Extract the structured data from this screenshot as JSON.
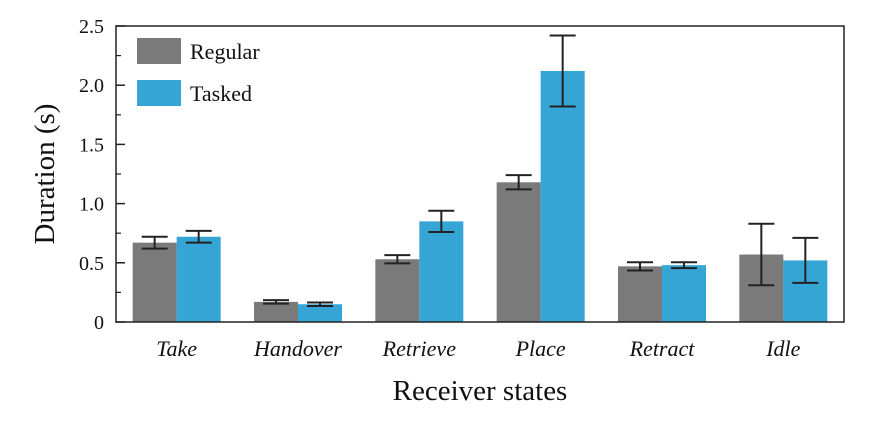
{
  "chart_data": {
    "type": "bar",
    "title": "",
    "xlabel": "Receiver states",
    "ylabel": "Duration (s)",
    "ylim": [
      0,
      2.5
    ],
    "yticks": [
      0,
      0.5,
      1.0,
      1.5,
      2.0,
      2.5
    ],
    "ytick_labels": [
      "0",
      "0.5",
      "1.0",
      "1.5",
      "2.0",
      "2.5"
    ],
    "categories": [
      "Take",
      "Handover",
      "Retrieve",
      "Place",
      "Retract",
      "Idle"
    ],
    "series": [
      {
        "name": "Regular",
        "color": "#7a7a7a",
        "values": [
          0.67,
          0.17,
          0.53,
          1.18,
          0.47,
          0.57
        ],
        "error": [
          0.05,
          0.015,
          0.035,
          0.06,
          0.035,
          0.26
        ]
      },
      {
        "name": "Tasked",
        "color": "#35a5d6",
        "values": [
          0.72,
          0.15,
          0.85,
          2.12,
          0.48,
          0.52
        ],
        "error": [
          0.05,
          0.015,
          0.09,
          0.3,
          0.025,
          0.19
        ]
      }
    ],
    "legend_position": "top-left",
    "grid": false
  }
}
